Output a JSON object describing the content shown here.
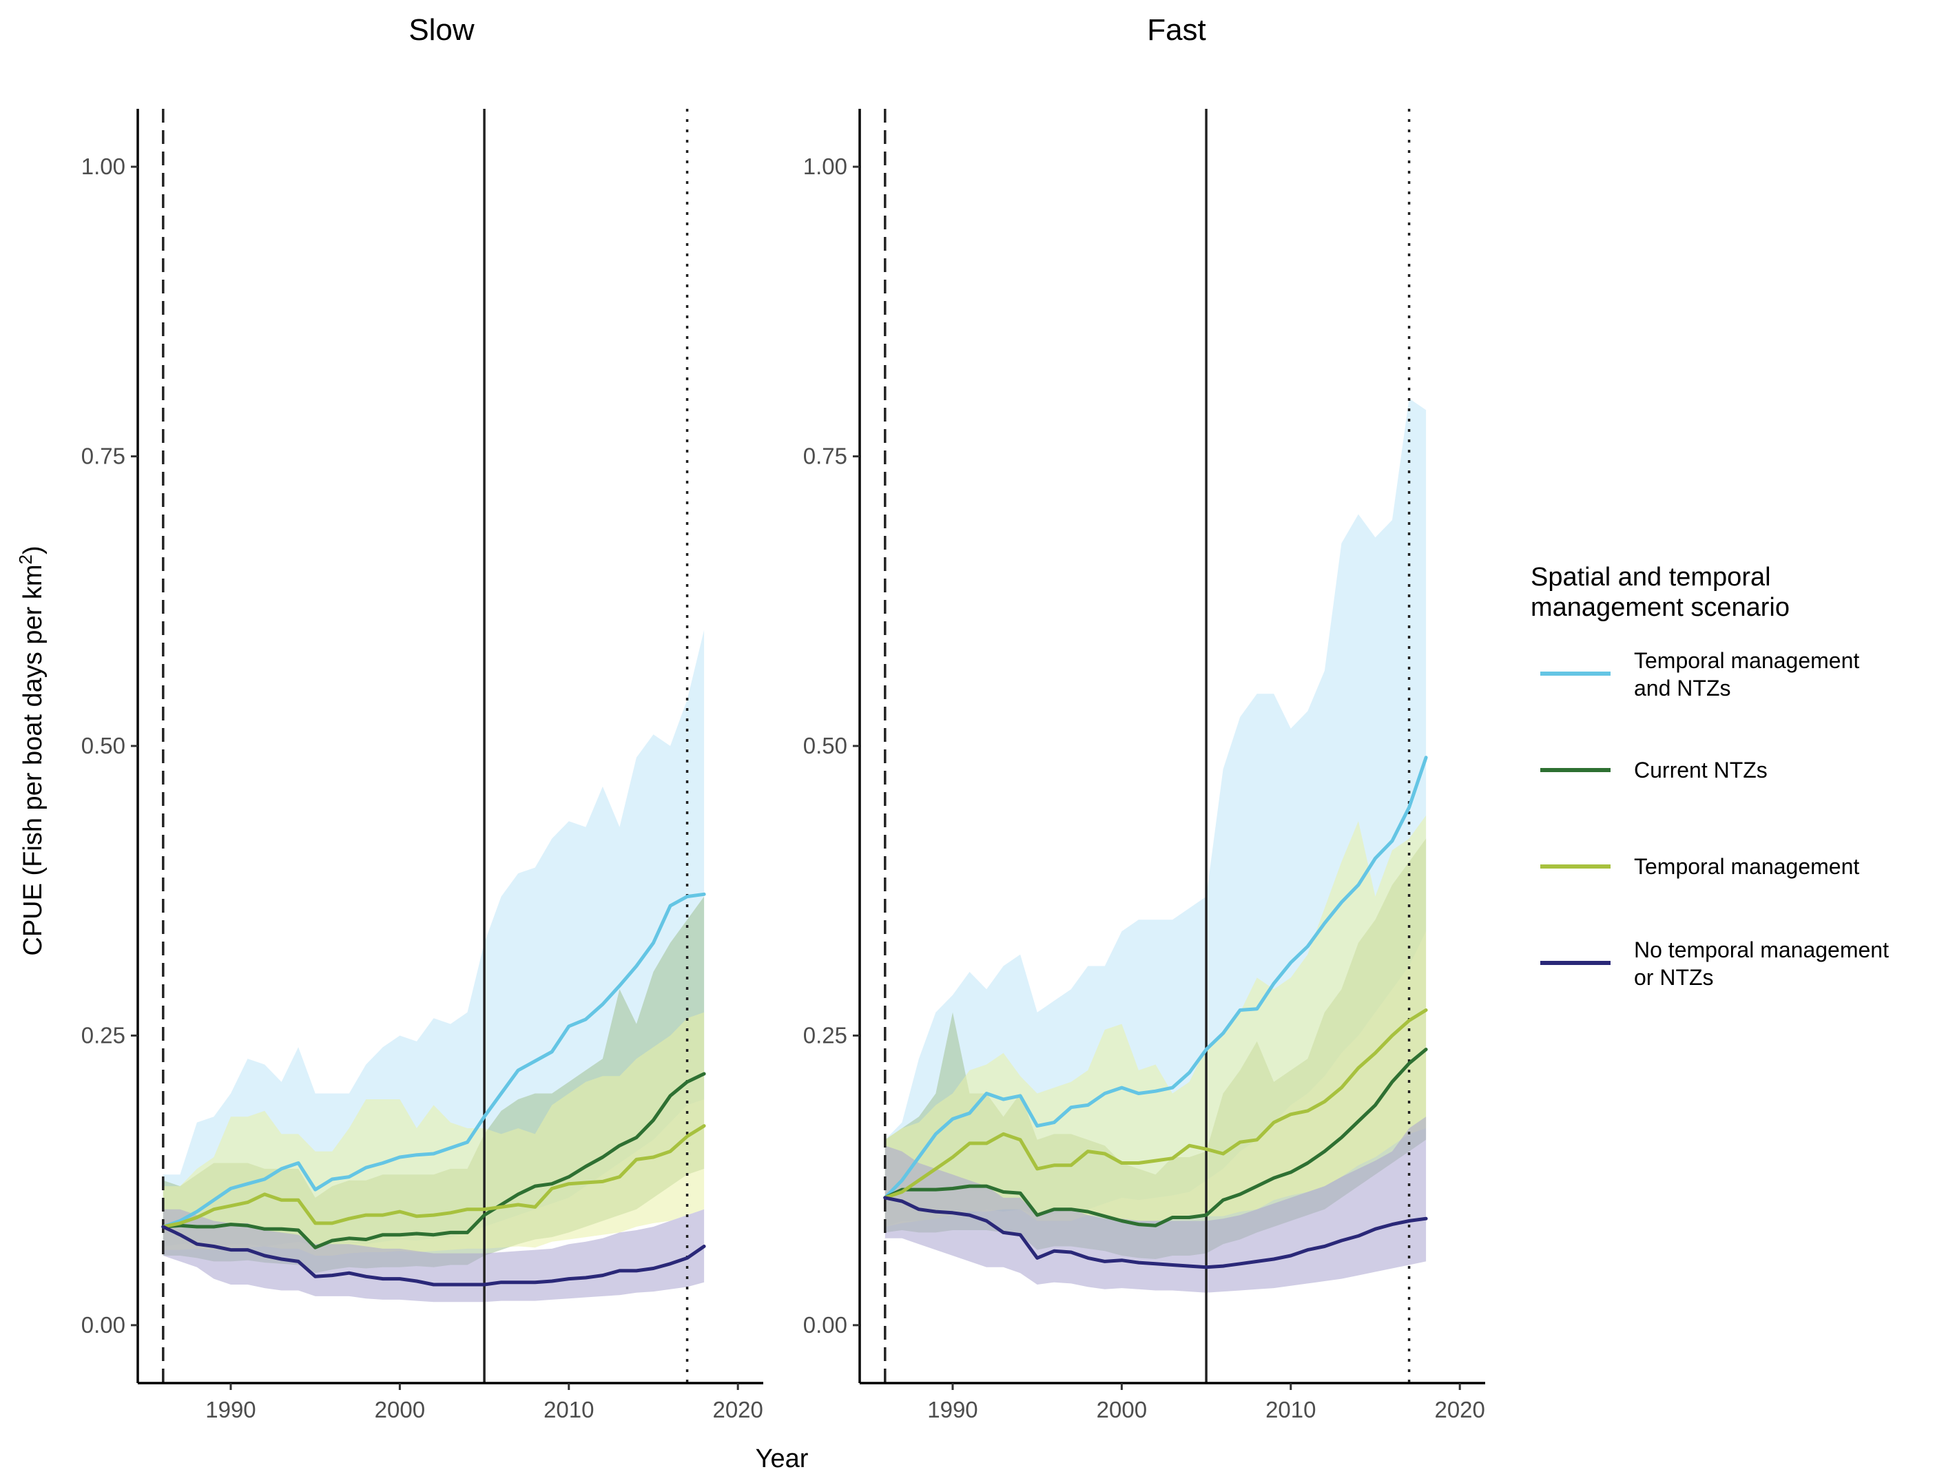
{
  "chart_data": {
    "type": "line",
    "title": "",
    "xlabel": "Year",
    "ylabel": "CPUE (Fish per boat days per km",
    "ylabel_superscript": "2",
    "ylabel_suffix": ")",
    "xlim": [
      1984.5,
      2021.5
    ],
    "ylim": [
      -0.05,
      1.05
    ],
    "x_ticks": [
      1990,
      2000,
      2010,
      2020
    ],
    "y_ticks": [
      0.0,
      0.25,
      0.5,
      0.75,
      1.0
    ],
    "y_tick_labels": [
      "0.00",
      "0.25",
      "0.50",
      "0.75",
      "1.00"
    ],
    "x": [
      1986,
      1987,
      1988,
      1989,
      1990,
      1991,
      1992,
      1993,
      1994,
      1995,
      1996,
      1997,
      1998,
      1999,
      2000,
      2001,
      2002,
      2003,
      2004,
      2005,
      2006,
      2007,
      2008,
      2009,
      2010,
      2011,
      2012,
      2013,
      2014,
      2015,
      2016,
      2017,
      2018
    ],
    "reference_lines": [
      {
        "x": 1986,
        "style": "dashed"
      },
      {
        "x": 2005,
        "style": "solid"
      },
      {
        "x": 2017,
        "style": "dotted"
      }
    ],
    "legend": {
      "title_lines": [
        "Spatial and temporal",
        "management scenario"
      ],
      "position": "right",
      "entries": [
        {
          "key": "temporal_ntz",
          "label_lines": [
            "Temporal management",
            "and NTZs"
          ],
          "color": "#64c5e4"
        },
        {
          "key": "current_ntz",
          "label_lines": [
            "Current NTZs"
          ],
          "color": "#2e7032"
        },
        {
          "key": "temporal",
          "label_lines": [
            "Temporal management"
          ],
          "color": "#a7c13e"
        },
        {
          "key": "none",
          "label_lines": [
            "No temporal management",
            "or NTZs"
          ],
          "color": "#2a2878"
        }
      ]
    },
    "band_colors": {
      "temporal_ntz": "#bfe6f7",
      "current_ntz": "#a3c193",
      "temporal": "#eaf0a8",
      "none": "#aaa4d0"
    },
    "panels": [
      {
        "title": "Slow",
        "series": [
          {
            "key": "temporal_ntz",
            "values": [
              0.085,
              0.09,
              0.098,
              0.108,
              0.118,
              0.122,
              0.126,
              0.135,
              0.14,
              0.117,
              0.126,
              0.128,
              0.136,
              0.14,
              0.145,
              0.147,
              0.148,
              0.153,
              0.158,
              0.18,
              0.2,
              0.22,
              0.228,
              0.236,
              0.258,
              0.264,
              0.277,
              0.293,
              0.31,
              0.33,
              0.362,
              0.37,
              0.372
            ],
            "lower": [
              0.068,
              0.07,
              0.071,
              0.068,
              0.07,
              0.07,
              0.068,
              0.07,
              0.072,
              0.068,
              0.07,
              0.071,
              0.07,
              0.072,
              0.074,
              0.073,
              0.075,
              0.076,
              0.08,
              0.085,
              0.09,
              0.095,
              0.1,
              0.105,
              0.11,
              0.12,
              0.13,
              0.14,
              0.15,
              0.16,
              0.175,
              0.19,
              0.195
            ],
            "upper": [
              0.13,
              0.13,
              0.175,
              0.18,
              0.2,
              0.23,
              0.225,
              0.21,
              0.24,
              0.2,
              0.2,
              0.2,
              0.225,
              0.24,
              0.25,
              0.245,
              0.265,
              0.26,
              0.27,
              0.33,
              0.37,
              0.39,
              0.395,
              0.42,
              0.435,
              0.43,
              0.465,
              0.43,
              0.49,
              0.51,
              0.5,
              0.54,
              0.6
            ]
          },
          {
            "key": "current_ntz",
            "values": [
              0.085,
              0.086,
              0.085,
              0.085,
              0.087,
              0.086,
              0.083,
              0.083,
              0.082,
              0.067,
              0.073,
              0.075,
              0.074,
              0.078,
              0.078,
              0.079,
              0.078,
              0.08,
              0.08,
              0.095,
              0.104,
              0.113,
              0.12,
              0.122,
              0.128,
              0.137,
              0.145,
              0.155,
              0.162,
              0.177,
              0.198,
              0.21,
              0.217
            ],
            "lower": [
              0.06,
              0.06,
              0.058,
              0.055,
              0.055,
              0.056,
              0.054,
              0.053,
              0.052,
              0.045,
              0.048,
              0.05,
              0.049,
              0.05,
              0.05,
              0.051,
              0.05,
              0.052,
              0.052,
              0.06,
              0.065,
              0.07,
              0.074,
              0.076,
              0.08,
              0.085,
              0.09,
              0.095,
              0.1,
              0.11,
              0.12,
              0.13,
              0.135
            ],
            "upper": [
              0.125,
              0.12,
              0.13,
              0.14,
              0.14,
              0.14,
              0.135,
              0.135,
              0.135,
              0.11,
              0.12,
              0.125,
              0.125,
              0.13,
              0.13,
              0.13,
              0.13,
              0.135,
              0.135,
              0.165,
              0.185,
              0.195,
              0.2,
              0.2,
              0.21,
              0.22,
              0.23,
              0.29,
              0.26,
              0.305,
              0.33,
              0.35,
              0.37
            ]
          },
          {
            "key": "temporal",
            "values": [
              0.085,
              0.088,
              0.093,
              0.1,
              0.103,
              0.106,
              0.113,
              0.108,
              0.108,
              0.088,
              0.088,
              0.092,
              0.095,
              0.095,
              0.098,
              0.094,
              0.095,
              0.097,
              0.1,
              0.1,
              0.102,
              0.104,
              0.102,
              0.118,
              0.122,
              0.123,
              0.124,
              0.128,
              0.143,
              0.145,
              0.15,
              0.163,
              0.172
            ],
            "lower": [
              0.065,
              0.065,
              0.066,
              0.065,
              0.066,
              0.067,
              0.068,
              0.066,
              0.066,
              0.06,
              0.06,
              0.062,
              0.063,
              0.063,
              0.064,
              0.063,
              0.064,
              0.065,
              0.066,
              0.066,
              0.067,
              0.068,
              0.067,
              0.072,
              0.074,
              0.076,
              0.078,
              0.08,
              0.085,
              0.088,
              0.09,
              0.095,
              0.1
            ],
            "upper": [
              0.12,
              0.12,
              0.135,
              0.145,
              0.18,
              0.18,
              0.185,
              0.165,
              0.165,
              0.15,
              0.15,
              0.17,
              0.195,
              0.195,
              0.195,
              0.17,
              0.19,
              0.175,
              0.17,
              0.17,
              0.165,
              0.17,
              0.165,
              0.19,
              0.2,
              0.21,
              0.215,
              0.215,
              0.23,
              0.24,
              0.25,
              0.265,
              0.27
            ]
          },
          {
            "key": "none",
            "values": [
              0.085,
              0.078,
              0.07,
              0.068,
              0.065,
              0.065,
              0.06,
              0.057,
              0.055,
              0.042,
              0.043,
              0.045,
              0.042,
              0.04,
              0.04,
              0.038,
              0.035,
              0.035,
              0.035,
              0.035,
              0.037,
              0.037,
              0.037,
              0.038,
              0.04,
              0.041,
              0.043,
              0.047,
              0.047,
              0.049,
              0.053,
              0.058,
              0.068
            ],
            "lower": [
              0.06,
              0.055,
              0.05,
              0.04,
              0.035,
              0.035,
              0.032,
              0.03,
              0.03,
              0.025,
              0.025,
              0.025,
              0.023,
              0.022,
              0.022,
              0.021,
              0.02,
              0.02,
              0.02,
              0.02,
              0.021,
              0.021,
              0.021,
              0.022,
              0.023,
              0.024,
              0.025,
              0.026,
              0.028,
              0.029,
              0.031,
              0.033,
              0.037
            ],
            "upper": [
              0.1,
              0.1,
              0.095,
              0.09,
              0.088,
              0.088,
              0.082,
              0.08,
              0.078,
              0.07,
              0.07,
              0.07,
              0.068,
              0.066,
              0.066,
              0.064,
              0.062,
              0.062,
              0.062,
              0.062,
              0.063,
              0.064,
              0.065,
              0.066,
              0.07,
              0.072,
              0.075,
              0.08,
              0.082,
              0.085,
              0.09,
              0.095,
              0.1
            ]
          }
        ]
      },
      {
        "title": "Fast",
        "series": [
          {
            "key": "temporal_ntz",
            "values": [
              0.11,
              0.125,
              0.145,
              0.165,
              0.178,
              0.183,
              0.2,
              0.195,
              0.198,
              0.172,
              0.175,
              0.188,
              0.19,
              0.2,
              0.205,
              0.2,
              0.202,
              0.205,
              0.218,
              0.238,
              0.252,
              0.272,
              0.273,
              0.295,
              0.313,
              0.327,
              0.347,
              0.365,
              0.38,
              0.403,
              0.418,
              0.447,
              0.49
            ],
            "lower": [
              0.085,
              0.09,
              0.09,
              0.092,
              0.095,
              0.095,
              0.1,
              0.098,
              0.1,
              0.095,
              0.096,
              0.1,
              0.1,
              0.105,
              0.11,
              0.108,
              0.11,
              0.112,
              0.115,
              0.125,
              0.135,
              0.15,
              0.16,
              0.175,
              0.19,
              0.2,
              0.215,
              0.235,
              0.25,
              0.27,
              0.29,
              0.31,
              0.34
            ],
            "upper": [
              0.16,
              0.175,
              0.23,
              0.27,
              0.285,
              0.305,
              0.29,
              0.31,
              0.32,
              0.27,
              0.28,
              0.29,
              0.31,
              0.31,
              0.34,
              0.35,
              0.35,
              0.35,
              0.36,
              0.37,
              0.48,
              0.525,
              0.545,
              0.545,
              0.515,
              0.53,
              0.565,
              0.675,
              0.7,
              0.68,
              0.695,
              0.8,
              0.79
            ]
          },
          {
            "key": "current_ntz",
            "values": [
              0.11,
              0.117,
              0.117,
              0.117,
              0.118,
              0.12,
              0.12,
              0.115,
              0.114,
              0.095,
              0.1,
              0.1,
              0.098,
              0.094,
              0.09,
              0.087,
              0.086,
              0.093,
              0.093,
              0.095,
              0.108,
              0.113,
              0.12,
              0.127,
              0.132,
              0.14,
              0.15,
              0.162,
              0.176,
              0.19,
              0.21,
              0.226,
              0.238
            ],
            "lower": [
              0.08,
              0.082,
              0.08,
              0.08,
              0.082,
              0.082,
              0.082,
              0.08,
              0.078,
              0.065,
              0.068,
              0.068,
              0.066,
              0.064,
              0.06,
              0.058,
              0.057,
              0.06,
              0.06,
              0.062,
              0.07,
              0.074,
              0.08,
              0.085,
              0.09,
              0.095,
              0.1,
              0.11,
              0.12,
              0.13,
              0.14,
              0.15,
              0.16
            ],
            "upper": [
              0.16,
              0.17,
              0.18,
              0.2,
              0.27,
              0.2,
              0.2,
              0.18,
              0.2,
              0.16,
              0.165,
              0.165,
              0.16,
              0.155,
              0.14,
              0.135,
              0.13,
              0.145,
              0.145,
              0.15,
              0.2,
              0.22,
              0.245,
              0.21,
              0.22,
              0.23,
              0.27,
              0.29,
              0.33,
              0.35,
              0.38,
              0.4,
              0.42
            ]
          },
          {
            "key": "temporal",
            "values": [
              0.11,
              0.115,
              0.125,
              0.135,
              0.145,
              0.157,
              0.157,
              0.165,
              0.16,
              0.135,
              0.138,
              0.138,
              0.15,
              0.148,
              0.14,
              0.14,
              0.142,
              0.144,
              0.155,
              0.152,
              0.148,
              0.158,
              0.16,
              0.175,
              0.182,
              0.185,
              0.193,
              0.205,
              0.222,
              0.235,
              0.25,
              0.263,
              0.272
            ],
            "lower": [
              0.085,
              0.088,
              0.09,
              0.092,
              0.095,
              0.098,
              0.098,
              0.1,
              0.1,
              0.09,
              0.09,
              0.09,
              0.095,
              0.094,
              0.09,
              0.09,
              0.09,
              0.092,
              0.095,
              0.094,
              0.094,
              0.098,
              0.1,
              0.108,
              0.112,
              0.115,
              0.12,
              0.128,
              0.138,
              0.145,
              0.155,
              0.165,
              0.17
            ],
            "upper": [
              0.16,
              0.17,
              0.175,
              0.19,
              0.2,
              0.22,
              0.225,
              0.235,
              0.215,
              0.2,
              0.205,
              0.21,
              0.22,
              0.255,
              0.26,
              0.22,
              0.225,
              0.2,
              0.21,
              0.24,
              0.25,
              0.27,
              0.3,
              0.29,
              0.3,
              0.32,
              0.36,
              0.4,
              0.435,
              0.37,
              0.41,
              0.42,
              0.44
            ]
          },
          {
            "key": "none",
            "values": [
              0.11,
              0.107,
              0.1,
              0.098,
              0.097,
              0.095,
              0.09,
              0.08,
              0.078,
              0.058,
              0.064,
              0.063,
              0.058,
              0.055,
              0.056,
              0.054,
              0.053,
              0.052,
              0.051,
              0.05,
              0.051,
              0.053,
              0.055,
              0.057,
              0.06,
              0.065,
              0.068,
              0.073,
              0.077,
              0.083,
              0.087,
              0.09,
              0.092
            ],
            "lower": [
              0.075,
              0.075,
              0.07,
              0.065,
              0.06,
              0.055,
              0.05,
              0.05,
              0.045,
              0.035,
              0.037,
              0.036,
              0.033,
              0.031,
              0.032,
              0.031,
              0.03,
              0.03,
              0.029,
              0.028,
              0.029,
              0.03,
              0.031,
              0.032,
              0.034,
              0.036,
              0.038,
              0.04,
              0.043,
              0.046,
              0.049,
              0.052,
              0.055
            ],
            "upper": [
              0.155,
              0.15,
              0.14,
              0.135,
              0.13,
              0.125,
              0.12,
              0.11,
              0.11,
              0.095,
              0.1,
              0.1,
              0.095,
              0.092,
              0.092,
              0.09,
              0.09,
              0.09,
              0.09,
              0.09,
              0.092,
              0.095,
              0.1,
              0.105,
              0.11,
              0.115,
              0.12,
              0.128,
              0.135,
              0.142,
              0.15,
              0.17,
              0.18
            ]
          }
        ]
      }
    ]
  }
}
